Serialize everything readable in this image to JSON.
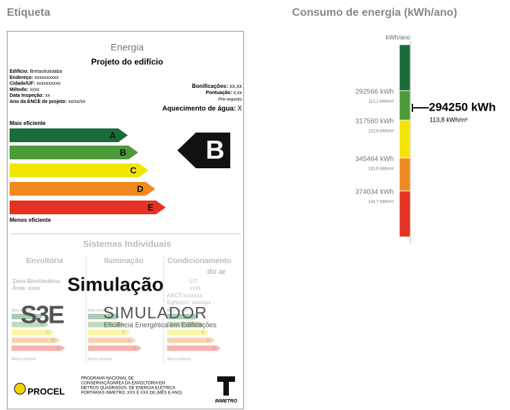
{
  "headings": {
    "label": "Etiqueta",
    "consumption": "Consumo de energia (kWh/ano)"
  },
  "label": {
    "energy": "Energia",
    "subtitle": "Projeto do edifício",
    "info": [
      {
        "label": "Edifício:",
        "value": "Bretasitulutaba"
      },
      {
        "label": "Endereço:",
        "value": "xxxxxxxxxx"
      },
      {
        "label": "Cidade/UF:",
        "value": "xxxxxxxxxx"
      },
      {
        "label": "Método:",
        "value": "xxxx"
      },
      {
        "label": "Data Inspeção:",
        "value": "xx"
      },
      {
        "label": "Ano da ENCE de projeto:",
        "value": "xx/xx/xx"
      }
    ],
    "bonus": {
      "label": "Bonificações:",
      "value": "xx,xx"
    },
    "score": {
      "label": "Pontuação:",
      "value": "x,xx"
    },
    "prereq": "Pré-requisito",
    "water": {
      "label": "Aquecimento de água:",
      "value": "X"
    },
    "most": "Mais eficiente",
    "least": "Menos eficiente",
    "classes": [
      "A",
      "B",
      "C",
      "D",
      "E"
    ],
    "rating": "B",
    "systems": "Sistemas Individuais",
    "envelope": "Envoltória",
    "lighting": "Iluminação",
    "ac_title": [
      "Condicionamento",
      "do ar"
    ],
    "envelope_info": [
      "Zona Bioclimática:",
      "Área: xxxx"
    ],
    "ac_info": [
      "LIT",
      "xxxx",
      "ARCT:xxxxxxx",
      "EqNumV: xxxxxxx"
    ],
    "simulation": "Simulação",
    "logo": "S3E",
    "simulator": "SIMULADOR",
    "tagline": "Eficiência Energética em Edificações",
    "procel": "PROCEL",
    "program": [
      "PROGRAMA NACIONAL DE",
      "CONSERVAÇÃOÁREA DA ENVOLTÓRIA EM",
      "METROS QUADRADOS: DE ENERGIA ELÉTRICA",
      "PORTARIAS INMETRO: XXX E XXX DE (MÊS E ANO)"
    ],
    "inmetro": "INMETRO"
  },
  "consumption": {
    "unit": "kWh/ano",
    "thresholds": [
      {
        "kwh": "292566 kWh",
        "per_m2": "113,2 kWh/m²"
      },
      {
        "kwh": "317560 kWh",
        "per_m2": "122,8 kWh/m²"
      },
      {
        "kwh": "345464 kWh",
        "per_m2": "133,6 kWh/m²"
      },
      {
        "kwh": "374034 kWh",
        "per_m2": "144,7 kWh/m²"
      }
    ],
    "current": {
      "kwh": "294250 kWh",
      "per_m2": "113,8 kWh/m²"
    }
  }
}
